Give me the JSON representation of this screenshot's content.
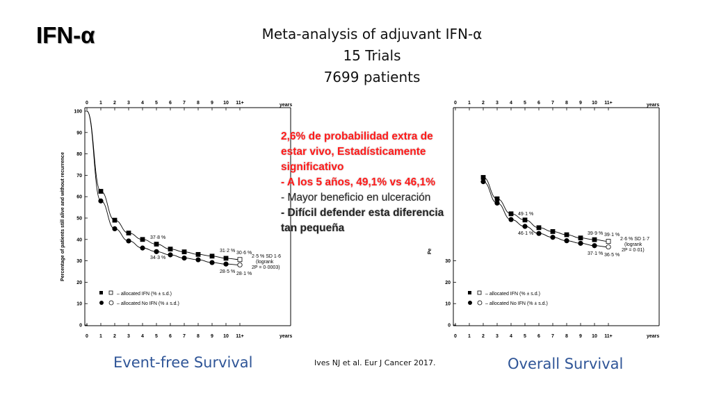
{
  "slide": {
    "label": "IFN-α",
    "title_lines": [
      "Meta-analysis of adjuvant IFN-α",
      "15 Trials",
      "7699 patients"
    ],
    "caption_left": "Event-free Survival",
    "caption_right": "Overall Survival",
    "citation": "Ives NJ et al. Eur J Cancer 2017."
  },
  "callout": {
    "line1": "2,6% de probabilidad extra de",
    "line2": "estar vivo, Estadísticamente",
    "line3": "significativo",
    "line4": "- A los 5 años, 49,1% vs 46,1%",
    "line5": "- Mayor beneficio en ulceración",
    "line6": "- Difícil defender esta diferencia",
    "line7": "tan pequeña"
  },
  "colors": {
    "caption": "#2f5597",
    "callout_red": "#ff1a1a"
  },
  "chart_data": [
    {
      "type": "line",
      "xlabel": "years",
      "ylabel": "Percentage of patients still alive and without recurrence",
      "ylim": [
        0,
        100
      ],
      "x_ticks": [
        "0",
        "1",
        "2",
        "3",
        "4",
        "5",
        "6",
        "7",
        "8",
        "9",
        "10",
        "11+"
      ],
      "y_ticks": [
        "0",
        "10",
        "20",
        "30",
        "40",
        "50",
        "60",
        "70",
        "80",
        "90",
        "100"
      ],
      "series": [
        {
          "name": "– allocated IFN (% ± s.d.)",
          "x": [
            0,
            1,
            2,
            3,
            4,
            5,
            6,
            7,
            8,
            9,
            10,
            11
          ],
          "values": [
            100,
            62.5,
            49,
            43,
            40,
            37.8,
            35.5,
            34.2,
            33,
            32.2,
            31.2,
            30.6
          ]
        },
        {
          "name": "– allocated No IFN (% ± s.d.)",
          "x": [
            0,
            1,
            2,
            3,
            4,
            5,
            6,
            7,
            8,
            9,
            10,
            11
          ],
          "values": [
            100,
            58,
            45,
            39.3,
            36,
            34.3,
            32.8,
            31.3,
            30.5,
            29.2,
            28.5,
            28.1
          ]
        }
      ],
      "annotations": {
        "ifn_5y": "37·8 %",
        "noifn_5y": "34·3 %",
        "ifn_10y": "31·2 %",
        "ifn_11y": "30·6 %",
        "noifn_10y": "28·5 %",
        "noifn_11y": "28·1 %",
        "stat_line1": "2·5 % SD 1·6",
        "stat_line2": "(logrank",
        "stat_line3": "2P = 0·0003)"
      }
    },
    {
      "type": "line",
      "xlabel": "years",
      "ylabel": "Pe",
      "ylim": [
        0,
        100
      ],
      "x_ticks": [
        "0",
        "1",
        "2",
        "3",
        "4",
        "5",
        "6",
        "7",
        "8",
        "9",
        "10",
        "11+"
      ],
      "y_ticks": [
        "0",
        "10",
        "20",
        "30"
      ],
      "series": [
        {
          "name": "– allocated IFN (% ± s.d.)",
          "x": [
            2,
            3,
            4,
            5,
            6,
            7,
            8,
            9,
            10,
            11
          ],
          "values": [
            69,
            59,
            52,
            49.1,
            45.5,
            43.7,
            42.2,
            40.7,
            39.9,
            39.1
          ]
        },
        {
          "name": "– allocated No IFN (% ± s.d.)",
          "x": [
            2,
            3,
            4,
            5,
            6,
            7,
            8,
            9,
            10,
            11
          ],
          "values": [
            67,
            57,
            49.3,
            46.1,
            42.8,
            41,
            39.4,
            38.2,
            37.1,
            36.5
          ]
        }
      ],
      "annotations": {
        "ifn_5y": "49·1 %",
        "noifn_5y": "46·1 %",
        "ifn_10y": "39·9 %",
        "ifn_11y": "39·1 %",
        "noifn_10y": "37·1 %",
        "noifn_11y": "36·5 %",
        "stat_line1": "2·6 % SD 1·7",
        "stat_line2": "(logrank",
        "stat_line3": "2P = 0·01)"
      }
    }
  ]
}
